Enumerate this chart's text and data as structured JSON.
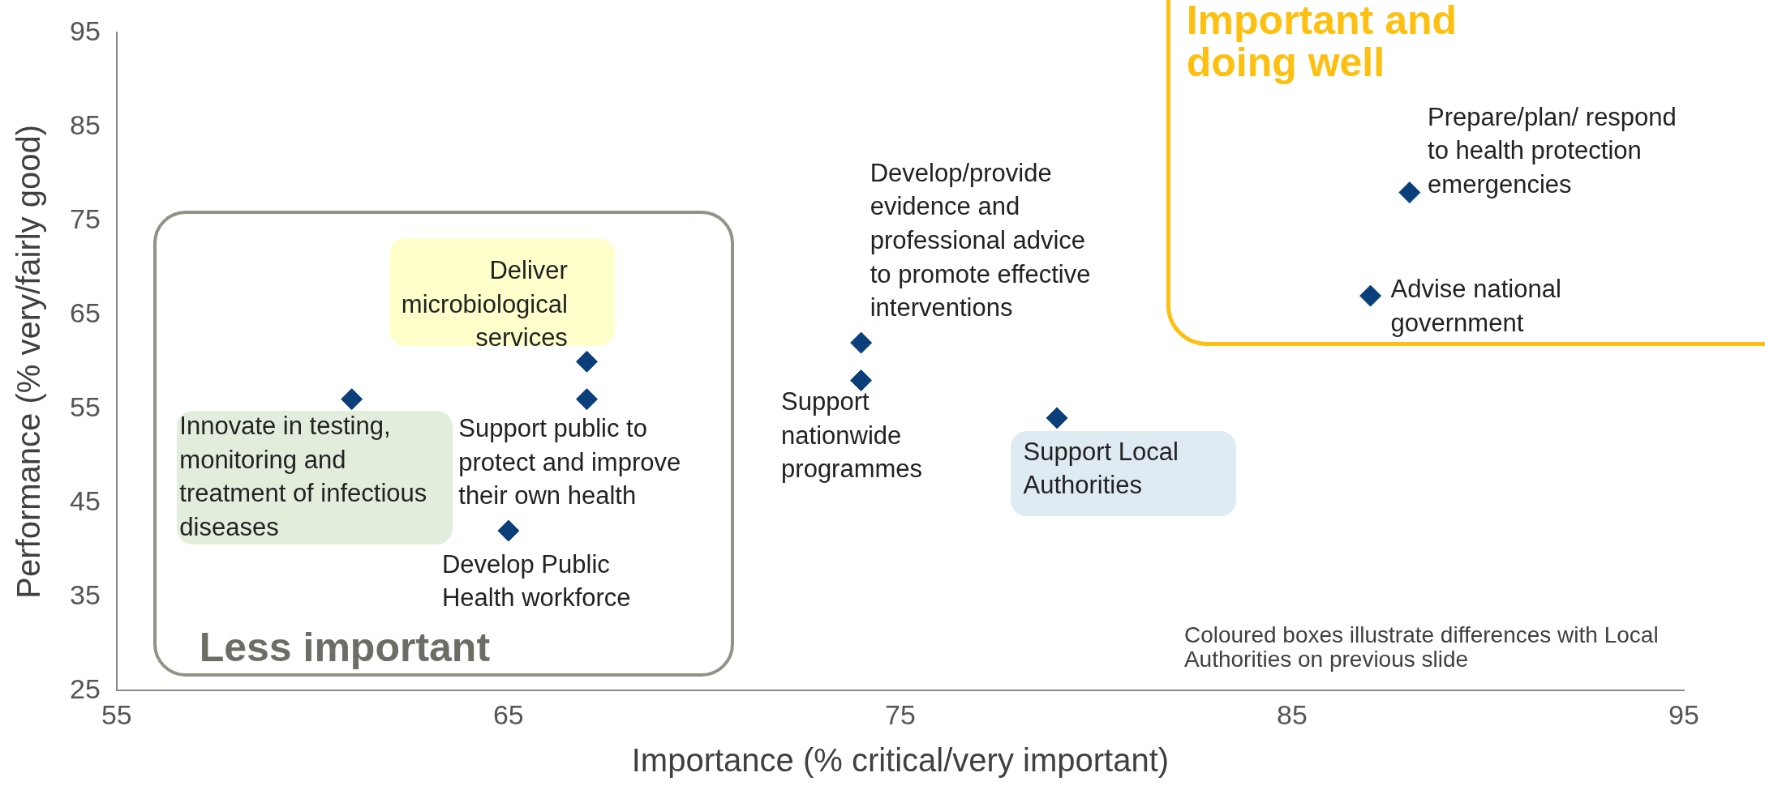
{
  "chart_data": {
    "type": "scatter",
    "xlabel": "Importance (% critical/very important)",
    "ylabel": "Performance (% very/fairly good)",
    "series": [
      {
        "color": "#0b3f7a",
        "x": [
          61,
          67,
          67,
          65,
          74,
          74,
          79,
          88,
          87
        ],
        "values": [
          56,
          60,
          56,
          42,
          62,
          58,
          54,
          78,
          67
        ]
      }
    ],
    "marker": "diamond",
    "xlim": [
      55,
      95
    ],
    "xticks": [
      55,
      65,
      75,
      85,
      95
    ],
    "ylim": [
      25,
      95
    ],
    "yticks": [
      25,
      35,
      45,
      55,
      65,
      75,
      85,
      95
    ],
    "grid": false,
    "legend": false,
    "annotations": [
      {
        "text": "Innovate in testing, monitoring and treatment of infectious diseases",
        "x": 61,
        "y": 56
      },
      {
        "text": "Deliver microbiological services",
        "x": 67,
        "y": 60
      },
      {
        "text": "Support public to protect and improve their own health",
        "x": 67,
        "y": 56
      },
      {
        "text": "Develop Public Health workforce",
        "x": 65,
        "y": 42
      },
      {
        "text": "Develop/provide evidence and professional advice to promote effective interventions",
        "x": 74,
        "y": 62
      },
      {
        "text": "Support nationwide programmes",
        "x": 74,
        "y": 58
      },
      {
        "text": "Support Local Authorities",
        "x": 79,
        "y": 54
      },
      {
        "text": "Prepare/plan/ respond to health protection emergencies",
        "x": 88,
        "y": 78
      },
      {
        "text": "Advise national government",
        "x": 87,
        "y": 67
      },
      "Less important",
      "Important and doing well",
      "Coloured boxes illustrate differences with Local Authorities on previous slide"
    ]
  }
}
